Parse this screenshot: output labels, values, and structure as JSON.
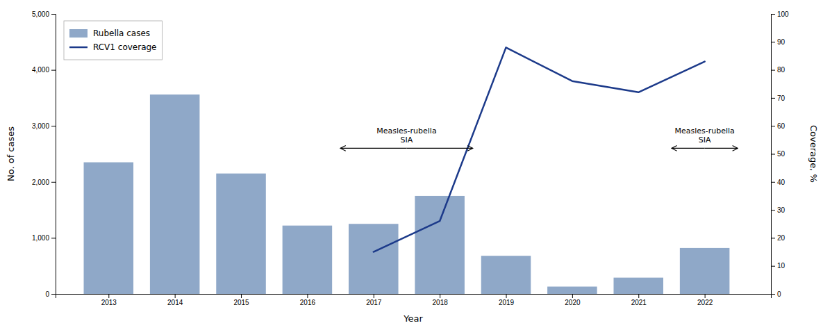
{
  "chart_data": {
    "type": "bar",
    "xlabel": "Year",
    "ylabel": "No. of cases",
    "y2label": "Coverage, %",
    "x": [
      2013,
      2014,
      2015,
      2016,
      2017,
      2018,
      2019,
      2020,
      2021,
      2022
    ],
    "xlim": [
      2012.2,
      2023.0
    ],
    "xticks": [
      2013,
      2014,
      2015,
      2016,
      2017,
      2018,
      2019,
      2020,
      2021,
      2022
    ],
    "ylim": [
      0,
      5000
    ],
    "yticks": [
      0,
      {
        "value": 1000,
        "label": "1,000"
      },
      {
        "value": 2000,
        "label": "2,000"
      },
      {
        "value": 3000,
        "label": "3,000"
      },
      {
        "value": 4000,
        "label": "4,000"
      },
      {
        "value": 5000,
        "label": "5,000"
      }
    ],
    "y2lim": [
      0,
      100
    ],
    "y2ticks": [
      0,
      10,
      20,
      30,
      40,
      50,
      60,
      70,
      80,
      90,
      100
    ],
    "series": [
      {
        "name": "Rubella cases",
        "type": "bar",
        "color": "#8FA8C8",
        "values": [
          2350,
          3560,
          2150,
          1220,
          1250,
          1750,
          680,
          130,
          290,
          820
        ]
      },
      {
        "name": "RCV1 coverage",
        "type": "line",
        "axis": "y2",
        "color": "#1C3A8A",
        "values": [
          null,
          null,
          null,
          null,
          15,
          26,
          88,
          76,
          72,
          83
        ]
      }
    ],
    "annotations": [
      {
        "text": "Measles-rubella\nSIA",
        "x": [
          2016.5,
          2018.5
        ],
        "y": 2600
      },
      {
        "text": "Measles-rubella\nSIA",
        "x": [
          2021.5,
          2022.5
        ],
        "y": 2600
      }
    ],
    "grid": false,
    "legend": "upper left"
  }
}
